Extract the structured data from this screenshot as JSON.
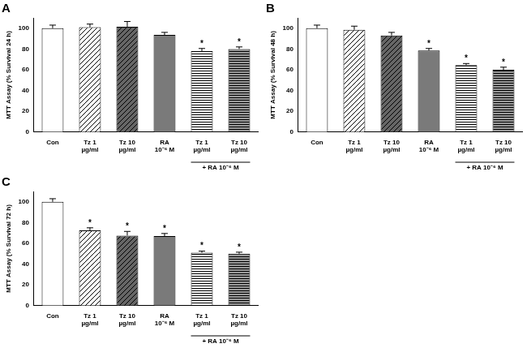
{
  "chart_data": [
    {
      "type": "bar",
      "title": "A",
      "y_label": "MTT Assay (% Survival 24 h)",
      "categories": [
        "Con",
        "Tz 1\nµg/ml",
        "Tz 10\nµg/ml",
        "RA\n10⁻⁶ M",
        "Tz 1\nµg/ml",
        "Tz 10\nµg/ml"
      ],
      "values": [
        100,
        101,
        101.5,
        93.5,
        78,
        80
      ],
      "errors": [
        3,
        3,
        5,
        2.5,
        2.5,
        2
      ],
      "colors": [
        "#ffffff",
        "#ffffff",
        "#666666",
        "#7a7a7a",
        "#ffffff",
        "#9a9a9a"
      ],
      "ylim": [
        0,
        110
      ],
      "yticks": [
        0,
        20,
        40,
        60,
        80,
        100
      ],
      "grid": false,
      "annotation": "*",
      "annotated": [
        false,
        false,
        false,
        false,
        true,
        true
      ],
      "group_label": "+ RA 10⁻⁶ M",
      "group_members": [
        4,
        5
      ]
    },
    {
      "type": "bar",
      "title": "B",
      "y_label": "MTT Assay (% Survival 48 h)",
      "categories": [
        "Con",
        "Tz 1\nµg/ml",
        "Tz 10\nµg/ml",
        "RA\n10⁻⁶ M",
        "Tz 1\nµg/ml",
        "Tz 10\nµg/ml"
      ],
      "values": [
        100,
        98.5,
        93,
        78.5,
        64.5,
        60
      ],
      "errors": [
        3,
        3.5,
        3,
        2,
        1.5,
        2.5
      ],
      "colors": [
        "#ffffff",
        "#ffffff",
        "#666666",
        "#7a7a7a",
        "#ffffff",
        "#9a9a9a"
      ],
      "ylim": [
        0,
        110
      ],
      "yticks": [
        0,
        20,
        40,
        60,
        80,
        100
      ],
      "grid": false,
      "annotation": "*",
      "annotated": [
        false,
        false,
        false,
        true,
        true,
        true
      ],
      "group_label": "+ RA 10⁻⁶ M",
      "group_members": [
        4,
        5
      ]
    },
    {
      "type": "bar",
      "title": "C",
      "y_label": "MTT Assay (% Survival 72 h)",
      "categories": [
        "Con",
        "Tz 1\nµg/ml",
        "Tz 10\nµg/ml",
        "RA\n10⁻⁶ M",
        "Tz 1\nµg/ml",
        "Tz 10\nµg/ml"
      ],
      "values": [
        100,
        72.5,
        67.5,
        67,
        51,
        50
      ],
      "errors": [
        3,
        2.5,
        4,
        2.5,
        1.5,
        1.5
      ],
      "colors": [
        "#ffffff",
        "#ffffff",
        "#666666",
        "#7a7a7a",
        "#ffffff",
        "#9a9a9a"
      ],
      "ylim": [
        0,
        110
      ],
      "yticks": [
        0,
        20,
        40,
        60,
        80,
        100
      ],
      "grid": false,
      "annotation": "*",
      "annotated": [
        false,
        true,
        true,
        true,
        true,
        true
      ],
      "group_label": "+ RA 10⁻⁶ M",
      "group_members": [
        4,
        5
      ]
    }
  ]
}
